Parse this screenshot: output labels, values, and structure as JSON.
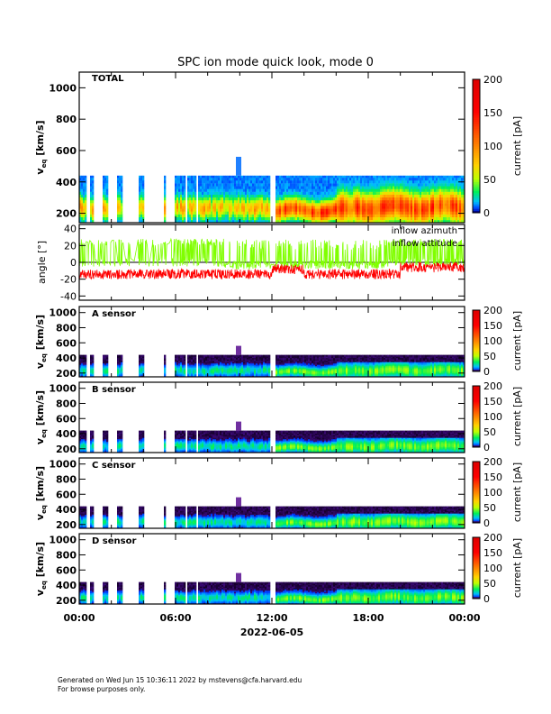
{
  "chart_data": {
    "type": "heatmap",
    "title": "SPC ion mode quick look, mode 0",
    "xlabel": "2022-06-05",
    "x_ticks": [
      "00:00",
      "06:00",
      "12:00",
      "18:00",
      "00:00"
    ],
    "x_range_hours": [
      0,
      24
    ],
    "data_gaps_hours": [
      [
        0.45,
        0.7
      ],
      [
        0.85,
        1.5
      ],
      [
        1.75,
        2.4
      ],
      [
        2.7,
        3.7
      ],
      [
        4.0,
        5.3
      ],
      [
        5.4,
        5.95
      ],
      [
        6.6,
        6.7
      ],
      [
        7.3,
        7.35
      ],
      [
        9.6,
        9.7
      ],
      [
        11.5,
        11.6
      ],
      [
        11.9,
        12.2
      ]
    ],
    "panels": [
      {
        "name": "TOTAL",
        "type": "heatmap",
        "ylabel": "v_eq [km/s]",
        "ylabel_main": "v",
        "ylabel_sub": "eq",
        "ylabel_unit": "[km/s]",
        "ylim": [
          140,
          1100
        ],
        "y_ticks": [
          "200",
          "400",
          "600",
          "800",
          "1000"
        ],
        "colorbar_label": "current [pA]",
        "colorbar_ticks": [
          "0",
          "50",
          "100",
          "150",
          "200"
        ],
        "clim": [
          0,
          200
        ]
      },
      {
        "name": "angle",
        "type": "line",
        "ylabel": "angle [°]",
        "ylim": [
          -45,
          45
        ],
        "y_ticks": [
          "-40",
          "-20",
          "0",
          "20",
          "40"
        ],
        "series": [
          {
            "name": "inflow azimuth",
            "color": "#ff0000",
            "typical_range": [
              -20,
              5
            ]
          },
          {
            "name": "inflow attitude",
            "color": "#80ff00",
            "typical_range": [
              -10,
              28
            ]
          }
        ]
      },
      {
        "name": "A sensor",
        "type": "heatmap",
        "ylabel_main": "v",
        "ylabel_sub": "eq",
        "ylabel_unit": "[km/s]",
        "ylim": [
          150,
          1080
        ],
        "y_ticks": [
          "200",
          "400",
          "600",
          "800",
          "1000"
        ],
        "colorbar_label": "current [pA]",
        "colorbar_ticks": [
          "0",
          "50",
          "100",
          "150",
          "200"
        ],
        "clim": [
          0,
          200
        ]
      },
      {
        "name": "B sensor",
        "type": "heatmap",
        "ylabel_main": "v",
        "ylabel_sub": "eq",
        "ylabel_unit": "[km/s]",
        "ylim": [
          150,
          1080
        ],
        "y_ticks": [
          "200",
          "400",
          "600",
          "800",
          "1000"
        ],
        "colorbar_label": "current [pA]",
        "colorbar_ticks": [
          "0",
          "50",
          "100",
          "150",
          "200"
        ],
        "clim": [
          0,
          200
        ]
      },
      {
        "name": "C sensor",
        "type": "heatmap",
        "ylabel_main": "v",
        "ylabel_sub": "eq",
        "ylabel_unit": "[km/s]",
        "ylim": [
          150,
          1080
        ],
        "y_ticks": [
          "200",
          "400",
          "600",
          "800",
          "1000"
        ],
        "colorbar_label": "current [pA]",
        "colorbar_ticks": [
          "0",
          "50",
          "100",
          "150",
          "200"
        ],
        "clim": [
          0,
          200
        ]
      },
      {
        "name": "D sensor",
        "type": "heatmap",
        "ylabel_main": "v",
        "ylabel_sub": "eq",
        "ylabel_unit": "[km/s]",
        "ylim": [
          150,
          1080
        ],
        "y_ticks": [
          "200",
          "400",
          "600",
          "800",
          "1000"
        ],
        "colorbar_label": "current [pA]",
        "colorbar_ticks": [
          "0",
          "50",
          "100",
          "150",
          "200"
        ],
        "clim": [
          0,
          200
        ]
      }
    ]
  },
  "footer": {
    "line1": "Generated on Wed Jun 15 10:36:11 2022 by mstevens@cfa.harvard.edu",
    "line2": "For browse purposes only."
  }
}
